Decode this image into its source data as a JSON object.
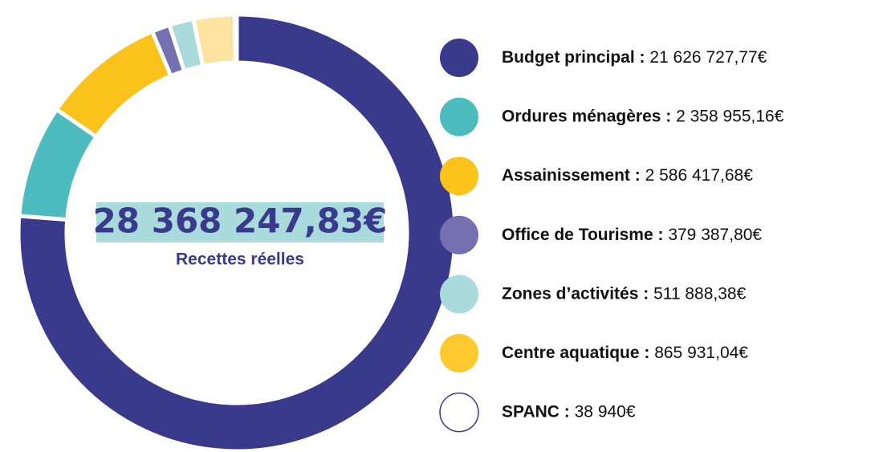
{
  "chart_data": {
    "type": "donut",
    "center_value": "28 368 247,83€",
    "center_label": "Recettes réelles",
    "separator": " : ",
    "categories": [
      "Budget principal",
      "Ordures ménagères",
      "Assainissement",
      "Office de Tourisme",
      "Zones d’activités",
      "Centre aquatique",
      "SPANC"
    ],
    "values": [
      21626727.77,
      2358955.16,
      2586417.68,
      379387.8,
      511888.38,
      865931.04,
      38940
    ],
    "value_labels": [
      "21 626 727,77€",
      "2 358 955,16€",
      "2 586 417,68€",
      "379 387,80€",
      "511 888,38€",
      "865 931,04€",
      "38 940€"
    ],
    "colors": [
      "#3a3a8c",
      "#4dbcbf",
      "#fcc21c",
      "#7470b2",
      "#a9dadc",
      "#fde3a2",
      "#ffffff"
    ],
    "legend_colors": [
      "#3a3a8c",
      "#4dbcbf",
      "#fcc21c",
      "#7470b2",
      "#a9dadc",
      "#fdc92f",
      "#ffffff"
    ]
  }
}
